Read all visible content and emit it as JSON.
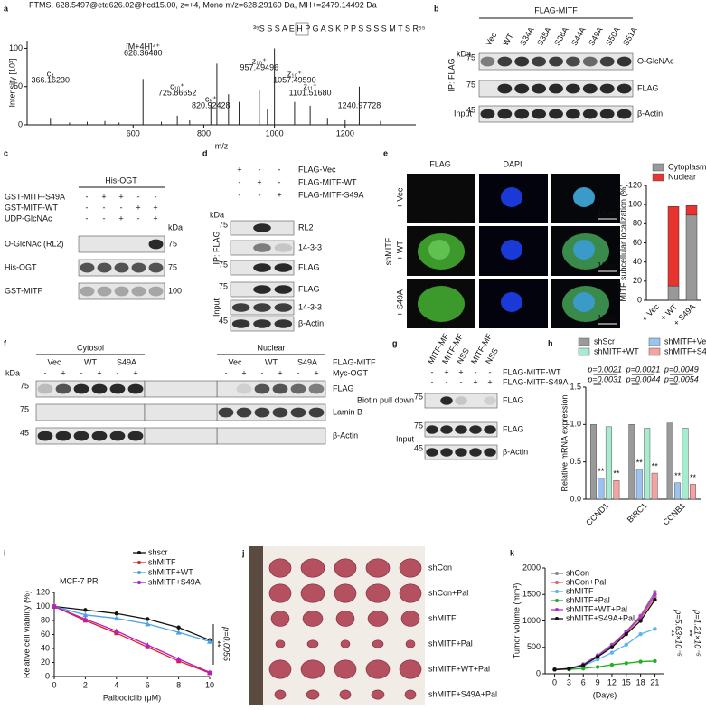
{
  "panels": {
    "a": {
      "label": "a",
      "header": "FTMS, 628.5497@etd626.02@hcd15.00, z=+4, Mono m/z=628.29169 Da, MH+=2479.14492 Da",
      "sequence": "³⁵S S S A E H P G A S K P P S S S S M T S R⁵⁵",
      "chart": {
        "type": "spectrum",
        "ylabel": "Intensity [10³]",
        "xlabel": "m/z",
        "color": "#222",
        "x": [
          366,
          420,
          470,
          520,
          560,
          628,
          680,
          725,
          760,
          820,
          837,
          870,
          900,
          957,
          980,
          1000,
          1057,
          1101,
          1150,
          1200,
          1240,
          1300
        ],
        "values": [
          8,
          3,
          4,
          5,
          3,
          60,
          4,
          12,
          6,
          25,
          80,
          40,
          30,
          45,
          20,
          100,
          30,
          25,
          8,
          6,
          50,
          5
        ],
        "xlim": [
          300,
          1400
        ],
        "xticks": [
          600,
          800,
          1000,
          1200
        ],
        "ylim": [
          0,
          110
        ],
        "yticks": [
          0,
          50,
          100
        ],
        "annotations": [
          {
            "ion": "[M+4H]⁴⁺",
            "mz": "628.36480",
            "x": 628,
            "color": "#2b3fc9"
          },
          {
            "ion": "c₄",
            "mz": "366.16230",
            "x": 366,
            "color": "#d22"
          },
          {
            "ion": "c₁₀⁺",
            "mz": "725.86652",
            "x": 725,
            "color": "#d22"
          },
          {
            "ion": "c₉⁺",
            "mz": "820.92428",
            "x": 820,
            "color": "#d22"
          },
          {
            "ion": "z₁₀⁺",
            "mz": "957.49496",
            "x": 957,
            "color": "#2b3fc9"
          },
          {
            "ion": "z₁₀⁺",
            "mz": "1057.49590",
            "x": 1057,
            "color": "#2b3fc9"
          },
          {
            "ion": "z₁₁⁺",
            "mz": "1101.51680",
            "x": 1101,
            "color": "#2b3fc9"
          },
          {
            "ion": "",
            "mz": "1240.97728",
            "x": 1240,
            "color": "#888"
          }
        ]
      }
    },
    "b": {
      "label": "b",
      "title": "FLAG-MITF",
      "kda": "kDa",
      "lanes": [
        "Vec",
        "WT",
        "S34A",
        "S35A",
        "S36A",
        "S44A",
        "S49A",
        "S50A",
        "S51A"
      ],
      "groups": [
        "IP: FLAG",
        "Input"
      ],
      "bands": [
        {
          "name": "O-GlcNAc",
          "kda": 75
        },
        {
          "name": "FLAG",
          "kda": 75
        },
        {
          "name": "β-Actin",
          "kda": 45
        }
      ]
    },
    "c": {
      "label": "c",
      "title": "His-OGT",
      "kda": "kDa",
      "rows": [
        {
          "name": "GST-MITF-S49A",
          "signs": [
            "-",
            "+",
            "+",
            "-",
            "-"
          ]
        },
        {
          "name": "GST-MITF-WT",
          "signs": [
            "-",
            "-",
            "-",
            "+",
            "+"
          ]
        },
        {
          "name": "UDP-GlcNAc",
          "signs": [
            "-",
            "-",
            "+",
            "-",
            "+"
          ]
        }
      ],
      "bands": [
        {
          "name": "O-GlcNAc (RL2)",
          "kda": 75
        },
        {
          "name": "His-OGT",
          "kda": 75
        },
        {
          "name": "GST-MITF",
          "kda": 100
        }
      ]
    },
    "d": {
      "label": "d",
      "kda": "kDa",
      "rows": [
        {
          "name": "FLAG-Vec",
          "signs": [
            "+",
            "-",
            "-"
          ]
        },
        {
          "name": "FLAG-MITF-WT",
          "signs": [
            "-",
            "+",
            "-"
          ]
        },
        {
          "name": "FLAG-MITF-S49A",
          "signs": [
            "-",
            "-",
            "+"
          ]
        }
      ],
      "groups": [
        "IP: FLAG",
        "Input"
      ],
      "bands": [
        {
          "name": "RL2",
          "kda": 75
        },
        {
          "name": "14-3-3"
        },
        {
          "name": "FLAG",
          "kda": 75
        },
        {
          "name": "FLAG",
          "kda": 75
        },
        {
          "name": "14-3-3"
        },
        {
          "name": "β-Actin",
          "kda": 45
        }
      ]
    },
    "e": {
      "label": "e",
      "columns": [
        "FLAG",
        "DAPI"
      ],
      "group": "shMITF",
      "rows": [
        "+ Vec",
        "+ WT",
        "+ S49A"
      ],
      "scale": "10μm",
      "chart": {
        "type": "stacked_bar",
        "ylabel": "MITF subcellular localization (%)",
        "categories": [
          "+ Vec",
          "+ WT",
          "+ S49A"
        ],
        "legend": "top",
        "series": [
          {
            "name": "Cytoplasm",
            "color": "#999999",
            "values": [
              0,
              15,
              89
            ]
          },
          {
            "name": "Nuclear",
            "color": "#e8332e",
            "values": [
              0,
              83,
              10
            ]
          }
        ],
        "ylim": [
          0,
          120
        ],
        "yticks": [
          0,
          20,
          40,
          60,
          80,
          100,
          120
        ]
      }
    },
    "f": {
      "label": "f",
      "groups": [
        "Cytosol",
        "Nuclear"
      ],
      "lanes": [
        "Vec",
        "WT",
        "S49A",
        "Vec",
        "WT",
        "S49A"
      ],
      "lane_title": "FLAG-MITF",
      "kda": "kDa",
      "row": {
        "name": "Myc-OGT",
        "signs": [
          "-",
          "+",
          "-",
          "+",
          "-",
          "+",
          "-",
          "+",
          "-",
          "+",
          "-",
          "+"
        ]
      },
      "bands": [
        {
          "name": "FLAG",
          "kda": 75
        },
        {
          "name": "Lamin B",
          "kda": 75
        },
        {
          "name": "β-Actin",
          "kda": 45
        }
      ]
    },
    "g": {
      "label": "g",
      "columns": [
        "MITF-MF",
        "MITF-MF",
        "NSS",
        "MITF-MF",
        "NSS"
      ],
      "rows": [
        {
          "name": "FLAG-MITF-WT",
          "signs": [
            "-",
            "+",
            "+",
            "-",
            "-"
          ]
        },
        {
          "name": "FLAG-MITF-S49A",
          "signs": [
            "-",
            "-",
            "-",
            "+",
            "+"
          ]
        }
      ],
      "groups": [
        "Biotin pull down",
        "Input"
      ],
      "bands": [
        {
          "name": "FLAG",
          "kda": 75
        },
        {
          "name": "FLAG",
          "kda": 75
        },
        {
          "name": "β-Actin",
          "kda": 45
        }
      ]
    },
    "h": {
      "label": "h",
      "chart": {
        "type": "bar",
        "ylabel": "Relative mRNA expression",
        "categories": [
          "CCND1",
          "BIRC1",
          "CCNB1"
        ],
        "legend": "top",
        "series": [
          {
            "name": "shScr",
            "color": "#9a9a9a",
            "values": [
              1.0,
              1.0,
              1.02
            ]
          },
          {
            "name": "shMITF+Vec",
            "color": "#9cc3f0",
            "values": [
              0.28,
              0.4,
              0.22
            ]
          },
          {
            "name": "shMITF+WT",
            "color": "#a8ecd0",
            "values": [
              0.97,
              0.95,
              0.95
            ]
          },
          {
            "name": "shMITF+S49A",
            "color": "#f4a3a3",
            "values": [
              0.25,
              0.35,
              0.2
            ]
          }
        ],
        "ylim": [
          0,
          1.5
        ],
        "yticks": [
          {
            "value": 0,
            "label": "0.0"
          },
          {
            "value": 0.5,
            "label": "0.5"
          },
          {
            "value": 1,
            "label": "1.0"
          },
          {
            "value": 1.5,
            "label": "1.5"
          }
        ],
        "pvalues": [
          "p=0.0021",
          "p=0.0031",
          "p=0.0021",
          "p=0.0044",
          "p=0.0049",
          "p=0.0054"
        ],
        "sig": "**"
      }
    },
    "i": {
      "label": "i",
      "chart": {
        "type": "line",
        "title": "MCF-7 PR",
        "xlabel": "Palbociclib (μM)",
        "ylabel": "Relative cell viability (%)",
        "legend": "top-right",
        "x": [
          0,
          2,
          4,
          6,
          8,
          10
        ],
        "xlim": [
          0,
          10
        ],
        "xticks": [
          0,
          2,
          4,
          6,
          8,
          10
        ],
        "ylim": [
          0,
          120
        ],
        "yticks": [
          0,
          20,
          40,
          60,
          80,
          100,
          120
        ],
        "series": [
          {
            "name": "shscr",
            "color": "#111111",
            "marker": "circle",
            "values": [
              100,
              95,
              90,
              82,
              70,
              52
            ]
          },
          {
            "name": "shMITF",
            "color": "#e02020",
            "marker": "square",
            "values": [
              100,
              80,
              62,
              42,
              22,
              5
            ]
          },
          {
            "name": "shMITF+WT",
            "color": "#4aa3e8",
            "marker": "triangle",
            "values": [
              100,
              88,
              83,
              75,
              63,
              50
            ]
          },
          {
            "name": "shMITF+S49A",
            "color": "#b020d0",
            "marker": "triangle",
            "values": [
              100,
              82,
              65,
              45,
              25,
              6
            ]
          }
        ],
        "annotations": [
          "**",
          "p=0.0055"
        ]
      }
    },
    "j": {
      "label": "j",
      "rows": [
        "shCon",
        "shCon+Pal",
        "shMITF",
        "shMITF+Pal",
        "shMITF+WT+Pal",
        "shMITF+S49A+Pal"
      ]
    },
    "k": {
      "label": "k",
      "chart": {
        "type": "line",
        "xlabel": "(Days)",
        "ylabel": "Tumor volume (mm³)",
        "legend": "upper-left",
        "x": [
          0,
          3,
          6,
          9,
          12,
          15,
          18,
          21
        ],
        "xlim": [
          -2,
          23
        ],
        "xticks": [
          0,
          3,
          6,
          9,
          12,
          15,
          18,
          21
        ],
        "ylim": [
          0,
          2000
        ],
        "yticks": [
          0,
          500,
          1000,
          1500,
          2000
        ],
        "series": [
          {
            "name": "shCon",
            "color": "#888888",
            "marker": "circle",
            "values": [
              80,
              100,
              180,
              350,
              550,
              800,
              1100,
              1550
            ]
          },
          {
            "name": "shCon+Pal",
            "color": "#e06070",
            "marker": "circle",
            "values": [
              80,
              100,
              170,
              330,
              520,
              780,
              1050,
              1450
            ]
          },
          {
            "name": "shMITF",
            "color": "#5ab4f0",
            "marker": "circle",
            "values": [
              80,
              90,
              150,
              270,
              400,
              550,
              750,
              850
            ]
          },
          {
            "name": "shMITF+Pal",
            "color": "#20b020",
            "marker": "circle",
            "values": [
              80,
              85,
              100,
              130,
              170,
              200,
              230,
              240
            ]
          },
          {
            "name": "shMITF+WT+Pal",
            "color": "#b030d0",
            "marker": "circle",
            "values": [
              80,
              100,
              170,
              340,
              540,
              800,
              1080,
              1500
            ]
          },
          {
            "name": "shMITF+S49A+Pal",
            "color": "#111111",
            "marker": "circle",
            "values": [
              80,
              95,
              160,
              320,
              500,
              750,
              1000,
              1400
            ]
          }
        ],
        "annotations": [
          "**",
          "p=5.63×10⁻⁵",
          "**",
          "p=1.21×10⁻⁵"
        ]
      }
    }
  }
}
